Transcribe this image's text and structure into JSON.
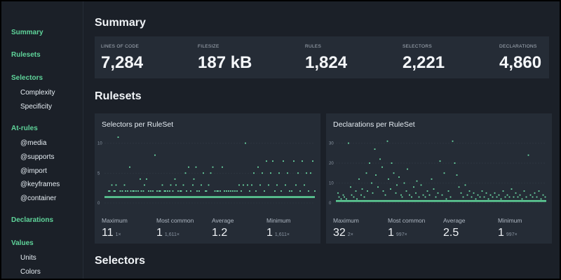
{
  "sidebar": {
    "items": [
      {
        "label": "Summary",
        "kind": "section"
      },
      {
        "label": "Rulesets",
        "kind": "section"
      },
      {
        "label": "Selectors",
        "kind": "section"
      },
      {
        "label": "Complexity",
        "kind": "sub"
      },
      {
        "label": "Specificity",
        "kind": "sub"
      },
      {
        "label": "At-rules",
        "kind": "section"
      },
      {
        "label": "@media",
        "kind": "sub"
      },
      {
        "label": "@supports",
        "kind": "sub"
      },
      {
        "label": "@import",
        "kind": "sub"
      },
      {
        "label": "@keyframes",
        "kind": "sub"
      },
      {
        "label": "@container",
        "kind": "sub"
      },
      {
        "label": "Declarations",
        "kind": "section"
      },
      {
        "label": "Values",
        "kind": "section"
      },
      {
        "label": "Units",
        "kind": "sub"
      },
      {
        "label": "Colors",
        "kind": "sub"
      }
    ]
  },
  "summary": {
    "title": "Summary",
    "stats": [
      {
        "label": "LINES OF CODE",
        "value": "7,284"
      },
      {
        "label": "FILESIZE",
        "value": "187 kB"
      },
      {
        "label": "RULES",
        "value": "1,824"
      },
      {
        "label": "SELECTORS",
        "value": "2,221"
      },
      {
        "label": "DECLARATIONS",
        "value": "4,860"
      }
    ]
  },
  "rulesets": {
    "title": "Rulesets",
    "cards": [
      {
        "title": "Selectors per RuleSet",
        "metrics": [
          {
            "label": "Maximum",
            "value": "11",
            "count": "1×"
          },
          {
            "label": "Most common",
            "value": "1",
            "count": "1,611×"
          },
          {
            "label": "Average",
            "value": "1.2",
            "count": ""
          },
          {
            "label": "Minimum",
            "value": "1",
            "count": "1,611×"
          }
        ]
      },
      {
        "title": "Declarations per RuleSet",
        "metrics": [
          {
            "label": "Maximum",
            "value": "32",
            "count": "2×"
          },
          {
            "label": "Most common",
            "value": "1",
            "count": "997×"
          },
          {
            "label": "Average",
            "value": "2.5",
            "count": ""
          },
          {
            "label": "Minimum",
            "value": "1",
            "count": "997×"
          }
        ]
      }
    ]
  },
  "selectors": {
    "title": "Selectors"
  },
  "colors": {
    "accent": "#5fd49a",
    "background": "#1b2028",
    "card": "#252c36",
    "dot": "#6ee0a8"
  },
  "chart_data": [
    {
      "type": "scatter",
      "title": "Selectors per RuleSet",
      "xlabel": "",
      "ylabel": "",
      "yticks": [
        0,
        5,
        10
      ],
      "ylim": [
        0,
        11
      ],
      "x": [
        4,
        5,
        7,
        9,
        10,
        11,
        13,
        15,
        17,
        19,
        20,
        22,
        24,
        25,
        27,
        28,
        30,
        32,
        34,
        35,
        37,
        38,
        40,
        42,
        44,
        46,
        48,
        50,
        52,
        53,
        55,
        57,
        58,
        60,
        62,
        63,
        65,
        67,
        68,
        70,
        72,
        73,
        75,
        77,
        78,
        80,
        82,
        84,
        85,
        87,
        88,
        90,
        92,
        94,
        96,
        97,
        99,
        101,
        103,
        105,
        107,
        108,
        110,
        112,
        114,
        116,
        118,
        120,
        122,
        124,
        126,
        128,
        130,
        132,
        134,
        136,
        138,
        140,
        142,
        144,
        146,
        148,
        150,
        152,
        154,
        156,
        158,
        160,
        162,
        164,
        166,
        168,
        170,
        172,
        174,
        176,
        178,
        180,
        182,
        184,
        186,
        188,
        190,
        192,
        194,
        196,
        198,
        200
      ],
      "y": [
        2,
        2,
        3,
        2,
        2,
        3,
        11,
        2,
        2,
        3,
        2,
        2,
        6,
        2,
        2,
        2,
        2,
        2,
        4,
        2,
        2,
        3,
        4,
        2,
        2,
        2,
        8,
        2,
        2,
        2,
        3,
        2,
        2,
        2,
        2,
        3,
        2,
        4,
        3,
        2,
        2,
        2,
        3,
        5,
        2,
        6,
        2,
        3,
        4,
        6,
        2,
        2,
        3,
        5,
        2,
        2,
        3,
        5,
        6,
        2,
        2,
        2,
        2,
        6,
        2,
        2,
        2,
        2,
        2,
        2,
        2,
        3,
        2,
        3,
        10,
        3,
        2,
        3,
        5,
        2,
        6,
        3,
        5,
        2,
        7,
        3,
        5,
        7,
        2,
        3,
        5,
        2,
        7,
        3,
        5,
        2,
        2,
        7,
        3,
        5,
        2,
        7,
        3,
        5,
        2,
        5,
        7,
        2
      ],
      "baseline": 1
    },
    {
      "type": "scatter",
      "title": "Declarations per RuleSet",
      "xlabel": "",
      "ylabel": "",
      "yticks": [
        0,
        10,
        20,
        30
      ],
      "ylim": [
        0,
        33
      ],
      "x": [
        2,
        3,
        5,
        7,
        8,
        10,
        12,
        14,
        15,
        17,
        19,
        20,
        22,
        24,
        25,
        27,
        29,
        30,
        32,
        34,
        35,
        37,
        38,
        40,
        42,
        44,
        45,
        47,
        49,
        50,
        52,
        53,
        55,
        57,
        58,
        60,
        62,
        63,
        65,
        67,
        68,
        70,
        72,
        74,
        76,
        77,
        79,
        81,
        83,
        85,
        87,
        89,
        91,
        93,
        95,
        97,
        99,
        101,
        103,
        105,
        107,
        109,
        111,
        113,
        115,
        117,
        119,
        121,
        123,
        125,
        127,
        129,
        131,
        133,
        135,
        137,
        139,
        141,
        143,
        145,
        147,
        149,
        151,
        153,
        155,
        157,
        159,
        161,
        163,
        165,
        167,
        169,
        171,
        173,
        175,
        177,
        179,
        181,
        183,
        185,
        187,
        189,
        191,
        193,
        195,
        197,
        199
      ],
      "y": [
        5,
        3,
        2,
        4,
        3,
        2,
        30,
        8,
        4,
        3,
        6,
        2,
        12,
        4,
        7,
        3,
        15,
        6,
        20,
        10,
        5,
        27,
        14,
        8,
        22,
        18,
        6,
        4,
        31,
        12,
        7,
        20,
        15,
        5,
        9,
        13,
        4,
        3,
        10,
        6,
        17,
        4,
        3,
        8,
        5,
        11,
        3,
        9,
        4,
        3,
        6,
        4,
        12,
        7,
        3,
        5,
        21,
        4,
        15,
        2,
        6,
        3,
        31,
        20,
        14,
        8,
        5,
        3,
        9,
        4,
        6,
        3,
        5,
        2,
        4,
        3,
        6,
        3,
        5,
        2,
        4,
        3,
        5,
        3,
        4,
        2,
        6,
        3,
        4,
        3,
        7,
        3,
        5,
        3,
        4,
        2,
        6,
        3,
        24,
        4,
        3,
        5,
        3,
        6,
        2,
        4,
        3
      ],
      "baseline": 1
    }
  ]
}
